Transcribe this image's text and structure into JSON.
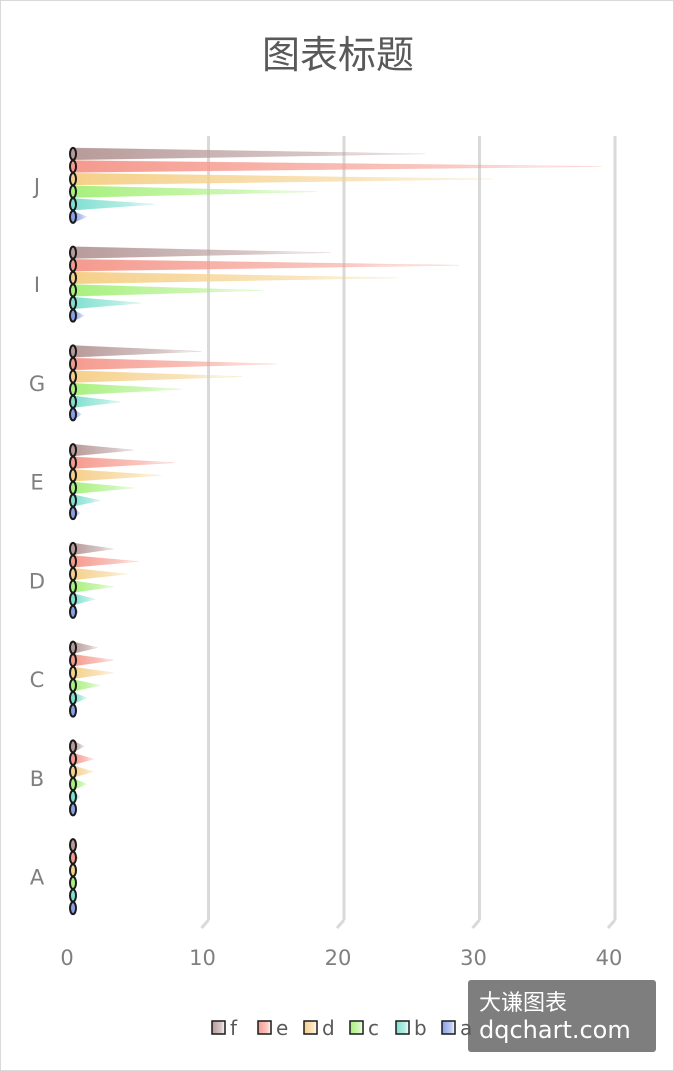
{
  "chart_data": {
    "type": "bar",
    "orientation": "horizontal",
    "title": "图表标题",
    "categories": [
      "A",
      "B",
      "C",
      "D",
      "E",
      "G",
      "I",
      "J"
    ],
    "xlim": [
      0,
      40
    ],
    "xticks": [
      0,
      10,
      20,
      30,
      40
    ],
    "grid": true,
    "legend_position": "bottom",
    "series": [
      {
        "name": "a",
        "color": "#8aa0e6",
        "values": [
          0.1,
          0.2,
          0.3,
          0.4,
          0.5,
          0.6,
          0.8,
          1.0
        ]
      },
      {
        "name": "b",
        "color": "#7fe0d0",
        "values": [
          0.2,
          0.5,
          1.0,
          1.6,
          2.0,
          3.5,
          5.0,
          6.0
        ]
      },
      {
        "name": "c",
        "color": "#a8f07e",
        "values": [
          0.3,
          1.0,
          2.0,
          3.0,
          4.5,
          8.0,
          14.0,
          18.0
        ]
      },
      {
        "name": "d",
        "color": "#f5d08a",
        "values": [
          0.3,
          1.5,
          3.0,
          4.0,
          6.5,
          12.5,
          24.0,
          31.0
        ]
      },
      {
        "name": "e",
        "color": "#f59a8e",
        "values": [
          0.4,
          1.5,
          3.0,
          4.8,
          7.5,
          15.0,
          28.5,
          39.0
        ]
      },
      {
        "name": "f",
        "color": "#b89a9a",
        "values": [
          0.3,
          0.8,
          1.8,
          3.0,
          4.5,
          9.5,
          19.0,
          26.0
        ]
      }
    ]
  },
  "watermark": {
    "line1": "大谦图表",
    "line2": "dqchart.com"
  }
}
